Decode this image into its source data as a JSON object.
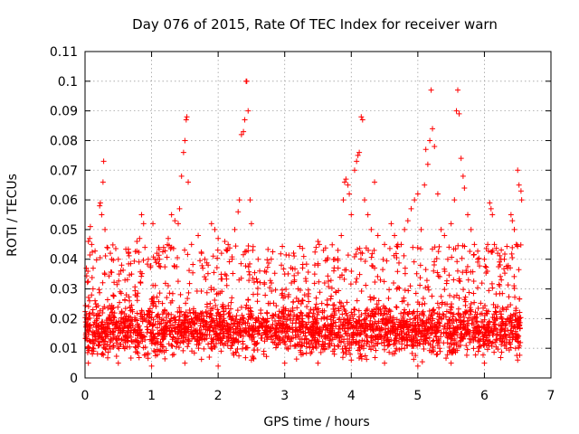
{
  "chart_data": {
    "type": "scatter",
    "title": "Day 076 of 2015, Rate Of TEC Index for receiver warn",
    "xlabel": "GPS time / hours",
    "ylabel": "ROTI / TECUs",
    "xlim": [
      0,
      7
    ],
    "ylim": [
      0,
      0.11
    ],
    "x_ticks": [
      0,
      1,
      2,
      3,
      4,
      5,
      6,
      7
    ],
    "x_tick_labels": [
      "0",
      "1",
      "2",
      "3",
      "4",
      "5",
      "6",
      "7"
    ],
    "y_ticks": [
      0,
      0.01,
      0.02,
      0.03,
      0.04,
      0.05,
      0.06,
      0.07,
      0.08,
      0.09,
      0.1,
      0.11
    ],
    "y_tick_labels": [
      "0",
      "0.01",
      "0.02",
      "0.03",
      "0.04",
      "0.05",
      "0.06",
      "0.07",
      "0.08",
      "0.09",
      "0.1",
      "0.11"
    ],
    "grid": true,
    "marker": "+",
    "color": "#ff0000",
    "series": [
      {
        "name": "ROTI",
        "points": [
          [
            0.02,
            0.037
          ],
          [
            0.05,
            0.046
          ],
          [
            0.07,
            0.047
          ],
          [
            0.08,
            0.051
          ],
          [
            0.1,
            0.045
          ],
          [
            0.12,
            0.03
          ],
          [
            0.15,
            0.026
          ],
          [
            0.22,
            0.058
          ],
          [
            0.23,
            0.059
          ],
          [
            0.25,
            0.055
          ],
          [
            0.27,
            0.066
          ],
          [
            0.28,
            0.073
          ],
          [
            0.3,
            0.05
          ],
          [
            0.33,
            0.044
          ],
          [
            0.38,
            0.042
          ],
          [
            0.4,
            0.04
          ],
          [
            0.5,
            0.04
          ],
          [
            0.55,
            0.038
          ],
          [
            0.6,
            0.033
          ],
          [
            0.7,
            0.035
          ],
          [
            0.78,
            0.046
          ],
          [
            0.82,
            0.047
          ],
          [
            0.85,
            0.055
          ],
          [
            0.88,
            0.052
          ],
          [
            0.9,
            0.044
          ],
          [
            0.95,
            0.04
          ],
          [
            1.02,
            0.052
          ],
          [
            1.05,
            0.04
          ],
          [
            1.08,
            0.042
          ],
          [
            1.12,
            0.04
          ],
          [
            1.18,
            0.044
          ],
          [
            1.25,
            0.047
          ],
          [
            1.3,
            0.055
          ],
          [
            1.35,
            0.053
          ],
          [
            1.4,
            0.052
          ],
          [
            1.42,
            0.057
          ],
          [
            1.45,
            0.068
          ],
          [
            1.48,
            0.076
          ],
          [
            1.5,
            0.08
          ],
          [
            1.52,
            0.087
          ],
          [
            1.53,
            0.088
          ],
          [
            1.55,
            0.066
          ],
          [
            1.6,
            0.045
          ],
          [
            1.7,
            0.048
          ],
          [
            1.75,
            0.042
          ],
          [
            1.8,
            0.04
          ],
          [
            1.85,
            0.038
          ],
          [
            1.9,
            0.052
          ],
          [
            1.95,
            0.05
          ],
          [
            2.0,
            0.047
          ],
          [
            2.05,
            0.042
          ],
          [
            2.1,
            0.046
          ],
          [
            2.15,
            0.045
          ],
          [
            2.25,
            0.05
          ],
          [
            2.3,
            0.056
          ],
          [
            2.32,
            0.06
          ],
          [
            2.35,
            0.082
          ],
          [
            2.38,
            0.083
          ],
          [
            2.4,
            0.087
          ],
          [
            2.42,
            0.1
          ],
          [
            2.43,
            0.1
          ],
          [
            2.45,
            0.09
          ],
          [
            2.48,
            0.06
          ],
          [
            2.5,
            0.052
          ],
          [
            2.6,
            0.04
          ],
          [
            2.7,
            0.036
          ],
          [
            2.8,
            0.032
          ],
          [
            2.95,
            0.038
          ],
          [
            3.0,
            0.035
          ],
          [
            3.1,
            0.032
          ],
          [
            3.2,
            0.03
          ],
          [
            3.3,
            0.028
          ],
          [
            3.45,
            0.035
          ],
          [
            3.5,
            0.046
          ],
          [
            3.52,
            0.045
          ],
          [
            3.5,
            0.038
          ],
          [
            3.6,
            0.032
          ],
          [
            3.75,
            0.04
          ],
          [
            3.8,
            0.043
          ],
          [
            3.85,
            0.048
          ],
          [
            3.88,
            0.06
          ],
          [
            3.9,
            0.066
          ],
          [
            3.92,
            0.067
          ],
          [
            3.95,
            0.065
          ],
          [
            3.97,
            0.062
          ],
          [
            4.0,
            0.055
          ],
          [
            4.05,
            0.07
          ],
          [
            4.08,
            0.073
          ],
          [
            4.1,
            0.075
          ],
          [
            4.12,
            0.076
          ],
          [
            4.15,
            0.088
          ],
          [
            4.17,
            0.087
          ],
          [
            4.2,
            0.06
          ],
          [
            4.25,
            0.055
          ],
          [
            4.3,
            0.05
          ],
          [
            4.35,
            0.066
          ],
          [
            4.4,
            0.048
          ],
          [
            4.5,
            0.045
          ],
          [
            4.6,
            0.052
          ],
          [
            4.65,
            0.048
          ],
          [
            4.7,
            0.045
          ],
          [
            4.75,
            0.045
          ],
          [
            4.8,
            0.05
          ],
          [
            4.85,
            0.053
          ],
          [
            4.9,
            0.057
          ],
          [
            4.95,
            0.06
          ],
          [
            5.0,
            0.062
          ],
          [
            5.05,
            0.05
          ],
          [
            5.1,
            0.065
          ],
          [
            5.12,
            0.077
          ],
          [
            5.15,
            0.072
          ],
          [
            5.18,
            0.08
          ],
          [
            5.2,
            0.097
          ],
          [
            5.22,
            0.084
          ],
          [
            5.25,
            0.078
          ],
          [
            5.3,
            0.062
          ],
          [
            5.35,
            0.05
          ],
          [
            5.4,
            0.048
          ],
          [
            5.45,
            0.04
          ],
          [
            5.5,
            0.052
          ],
          [
            5.55,
            0.06
          ],
          [
            5.58,
            0.09
          ],
          [
            5.6,
            0.097
          ],
          [
            5.62,
            0.089
          ],
          [
            5.65,
            0.074
          ],
          [
            5.68,
            0.068
          ],
          [
            5.7,
            0.064
          ],
          [
            5.75,
            0.055
          ],
          [
            5.8,
            0.05
          ],
          [
            5.85,
            0.045
          ],
          [
            5.9,
            0.04
          ],
          [
            6.0,
            0.04
          ],
          [
            6.05,
            0.045
          ],
          [
            6.08,
            0.059
          ],
          [
            6.1,
            0.057
          ],
          [
            6.12,
            0.055
          ],
          [
            6.15,
            0.045
          ],
          [
            6.2,
            0.042
          ],
          [
            6.25,
            0.04
          ],
          [
            6.3,
            0.04
          ],
          [
            6.35,
            0.037
          ],
          [
            6.4,
            0.055
          ],
          [
            6.42,
            0.053
          ],
          [
            6.45,
            0.05
          ],
          [
            6.48,
            0.045
          ],
          [
            6.5,
            0.07
          ],
          [
            6.52,
            0.065
          ],
          [
            6.55,
            0.063
          ],
          [
            6.56,
            0.06
          ],
          [
            0.05,
            0.005
          ],
          [
            0.5,
            0.005
          ],
          [
            1.0,
            0.004
          ],
          [
            1.5,
            0.005
          ],
          [
            2.0,
            0.004
          ],
          [
            2.5,
            0.006
          ],
          [
            3.0,
            0.005
          ],
          [
            3.5,
            0.005
          ],
          [
            4.0,
            0.006
          ],
          [
            4.5,
            0.005
          ],
          [
            5.0,
            0.004
          ],
          [
            5.5,
            0.005
          ],
          [
            6.0,
            0.005
          ],
          [
            6.5,
            0.006
          ],
          [
            0.3,
            0.01
          ],
          [
            0.8,
            0.012
          ],
          [
            1.3,
            0.011
          ],
          [
            1.8,
            0.013
          ],
          [
            2.3,
            0.012
          ],
          [
            2.8,
            0.014
          ],
          [
            3.3,
            0.013
          ],
          [
            3.8,
            0.011
          ],
          [
            4.3,
            0.012
          ],
          [
            4.8,
            0.01
          ],
          [
            5.3,
            0.011
          ],
          [
            5.8,
            0.013
          ],
          [
            6.3,
            0.012
          ]
        ],
        "dense_bands": [
          {
            "x_start": 0.0,
            "x_end": 6.55,
            "y_low": 0.004,
            "y_high": 0.025
          }
        ]
      }
    ]
  }
}
